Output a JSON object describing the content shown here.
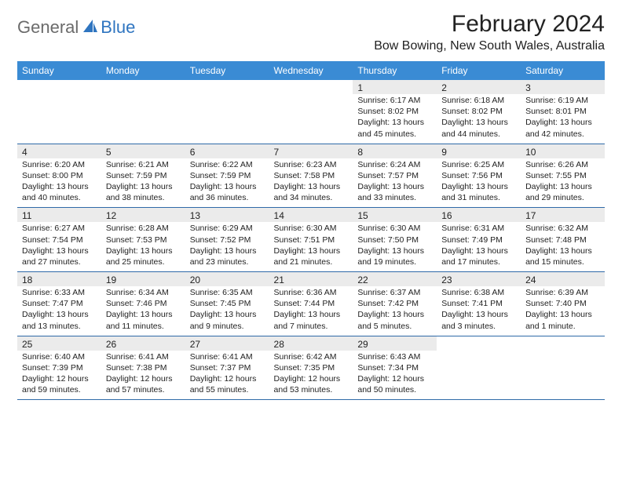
{
  "brand": {
    "text_general": "General",
    "text_blue": "Blue"
  },
  "header": {
    "month_title": "February 2024",
    "location": "Bow Bowing, New South Wales, Australia"
  },
  "colors": {
    "header_bg": "#3a8bd4",
    "header_text": "#ffffff",
    "date_bg": "#ebebeb",
    "rule": "#2f6aa8",
    "logo_gray": "#6b6b6b",
    "logo_blue": "#2f75c0"
  },
  "weekdays": [
    "Sunday",
    "Monday",
    "Tuesday",
    "Wednesday",
    "Thursday",
    "Friday",
    "Saturday"
  ],
  "weeks": [
    [
      null,
      null,
      null,
      null,
      {
        "date": "1",
        "sunrise": "6:17 AM",
        "sunset": "8:02 PM",
        "daylight": "13 hours and 45 minutes."
      },
      {
        "date": "2",
        "sunrise": "6:18 AM",
        "sunset": "8:02 PM",
        "daylight": "13 hours and 44 minutes."
      },
      {
        "date": "3",
        "sunrise": "6:19 AM",
        "sunset": "8:01 PM",
        "daylight": "13 hours and 42 minutes."
      }
    ],
    [
      {
        "date": "4",
        "sunrise": "6:20 AM",
        "sunset": "8:00 PM",
        "daylight": "13 hours and 40 minutes."
      },
      {
        "date": "5",
        "sunrise": "6:21 AM",
        "sunset": "7:59 PM",
        "daylight": "13 hours and 38 minutes."
      },
      {
        "date": "6",
        "sunrise": "6:22 AM",
        "sunset": "7:59 PM",
        "daylight": "13 hours and 36 minutes."
      },
      {
        "date": "7",
        "sunrise": "6:23 AM",
        "sunset": "7:58 PM",
        "daylight": "13 hours and 34 minutes."
      },
      {
        "date": "8",
        "sunrise": "6:24 AM",
        "sunset": "7:57 PM",
        "daylight": "13 hours and 33 minutes."
      },
      {
        "date": "9",
        "sunrise": "6:25 AM",
        "sunset": "7:56 PM",
        "daylight": "13 hours and 31 minutes."
      },
      {
        "date": "10",
        "sunrise": "6:26 AM",
        "sunset": "7:55 PM",
        "daylight": "13 hours and 29 minutes."
      }
    ],
    [
      {
        "date": "11",
        "sunrise": "6:27 AM",
        "sunset": "7:54 PM",
        "daylight": "13 hours and 27 minutes."
      },
      {
        "date": "12",
        "sunrise": "6:28 AM",
        "sunset": "7:53 PM",
        "daylight": "13 hours and 25 minutes."
      },
      {
        "date": "13",
        "sunrise": "6:29 AM",
        "sunset": "7:52 PM",
        "daylight": "13 hours and 23 minutes."
      },
      {
        "date": "14",
        "sunrise": "6:30 AM",
        "sunset": "7:51 PM",
        "daylight": "13 hours and 21 minutes."
      },
      {
        "date": "15",
        "sunrise": "6:30 AM",
        "sunset": "7:50 PM",
        "daylight": "13 hours and 19 minutes."
      },
      {
        "date": "16",
        "sunrise": "6:31 AM",
        "sunset": "7:49 PM",
        "daylight": "13 hours and 17 minutes."
      },
      {
        "date": "17",
        "sunrise": "6:32 AM",
        "sunset": "7:48 PM",
        "daylight": "13 hours and 15 minutes."
      }
    ],
    [
      {
        "date": "18",
        "sunrise": "6:33 AM",
        "sunset": "7:47 PM",
        "daylight": "13 hours and 13 minutes."
      },
      {
        "date": "19",
        "sunrise": "6:34 AM",
        "sunset": "7:46 PM",
        "daylight": "13 hours and 11 minutes."
      },
      {
        "date": "20",
        "sunrise": "6:35 AM",
        "sunset": "7:45 PM",
        "daylight": "13 hours and 9 minutes."
      },
      {
        "date": "21",
        "sunrise": "6:36 AM",
        "sunset": "7:44 PM",
        "daylight": "13 hours and 7 minutes."
      },
      {
        "date": "22",
        "sunrise": "6:37 AM",
        "sunset": "7:42 PM",
        "daylight": "13 hours and 5 minutes."
      },
      {
        "date": "23",
        "sunrise": "6:38 AM",
        "sunset": "7:41 PM",
        "daylight": "13 hours and 3 minutes."
      },
      {
        "date": "24",
        "sunrise": "6:39 AM",
        "sunset": "7:40 PM",
        "daylight": "13 hours and 1 minute."
      }
    ],
    [
      {
        "date": "25",
        "sunrise": "6:40 AM",
        "sunset": "7:39 PM",
        "daylight": "12 hours and 59 minutes."
      },
      {
        "date": "26",
        "sunrise": "6:41 AM",
        "sunset": "7:38 PM",
        "daylight": "12 hours and 57 minutes."
      },
      {
        "date": "27",
        "sunrise": "6:41 AM",
        "sunset": "7:37 PM",
        "daylight": "12 hours and 55 minutes."
      },
      {
        "date": "28",
        "sunrise": "6:42 AM",
        "sunset": "7:35 PM",
        "daylight": "12 hours and 53 minutes."
      },
      {
        "date": "29",
        "sunrise": "6:43 AM",
        "sunset": "7:34 PM",
        "daylight": "12 hours and 50 minutes."
      },
      null,
      null
    ]
  ],
  "labels": {
    "sunrise": "Sunrise:",
    "sunset": "Sunset:",
    "daylight": "Daylight:"
  }
}
